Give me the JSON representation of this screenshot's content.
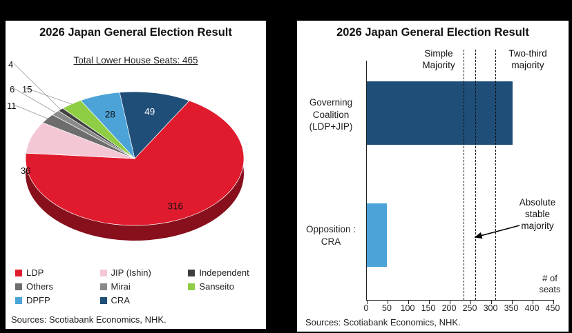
{
  "left_panel": {
    "title": "2026 Japan General Election Result",
    "subtitle": "Total Lower House Seats: 465",
    "sources": "Sources: Scotiabank Economics, NHK."
  },
  "right_panel": {
    "title": "2026 Japan General Election Result",
    "sources": "Sources: Scotiabank Economics, NHK.",
    "xlabel_l1": "# of",
    "xlabel_l2": "seats",
    "labels": {
      "simple_l1": "Simple",
      "simple_l2": "Majority",
      "twothird_l1": "Two-third",
      "twothird_l2": "majority",
      "absolute_l1": "Absolute",
      "absolute_l2": "stable",
      "absolute_l3": "majority"
    }
  },
  "chart_data": [
    {
      "type": "pie",
      "title": "2026 Japan General Election Result",
      "subtitle": "Total Lower House Seats: 465",
      "total_seats": 465,
      "labels": [
        "LDP",
        "JIP (Ishin)",
        "Others",
        "Mirai",
        "Independent",
        "Sanseito",
        "DPFP",
        "CRA"
      ],
      "values": [
        316,
        36,
        11,
        6,
        4,
        15,
        28,
        49
      ],
      "colors": [
        "#e11b2e",
        "#f4c7d4",
        "#6d6d6d",
        "#8a8a8a",
        "#3f3f3f",
        "#8fce44",
        "#4ba3d8",
        "#1f4e79"
      ],
      "legend": [
        {
          "label": "LDP",
          "color": "#e11b2e"
        },
        {
          "label": "JIP (Ishin)",
          "color": "#f4c7d4"
        },
        {
          "label": "Independent",
          "color": "#3f3f3f"
        },
        {
          "label": "Others",
          "color": "#6d6d6d"
        },
        {
          "label": "Mirai",
          "color": "#8a8a8a"
        },
        {
          "label": "Sanseito",
          "color": "#8fce44"
        },
        {
          "label": "DPFP",
          "color": "#4ba3d8"
        },
        {
          "label": "CRA",
          "color": "#1f4e79"
        }
      ]
    },
    {
      "type": "bar",
      "orientation": "horizontal",
      "categories": [
        "Governing Coalition (LDP+JIP)",
        "Opposition : CRA"
      ],
      "values": [
        352,
        49
      ],
      "colors": [
        "#1f4e79",
        "#4ba3d8"
      ],
      "xlim": [
        0,
        450
      ],
      "xticks": [
        0,
        50,
        100,
        150,
        200,
        250,
        300,
        350,
        400,
        450
      ],
      "xlabel": "# of seats",
      "reference_lines": [
        {
          "label": "Simple Majority",
          "value": 233
        },
        {
          "label": "Absolute stable majority",
          "value": 261
        },
        {
          "label": "Two-third majority",
          "value": 310
        }
      ]
    }
  ]
}
